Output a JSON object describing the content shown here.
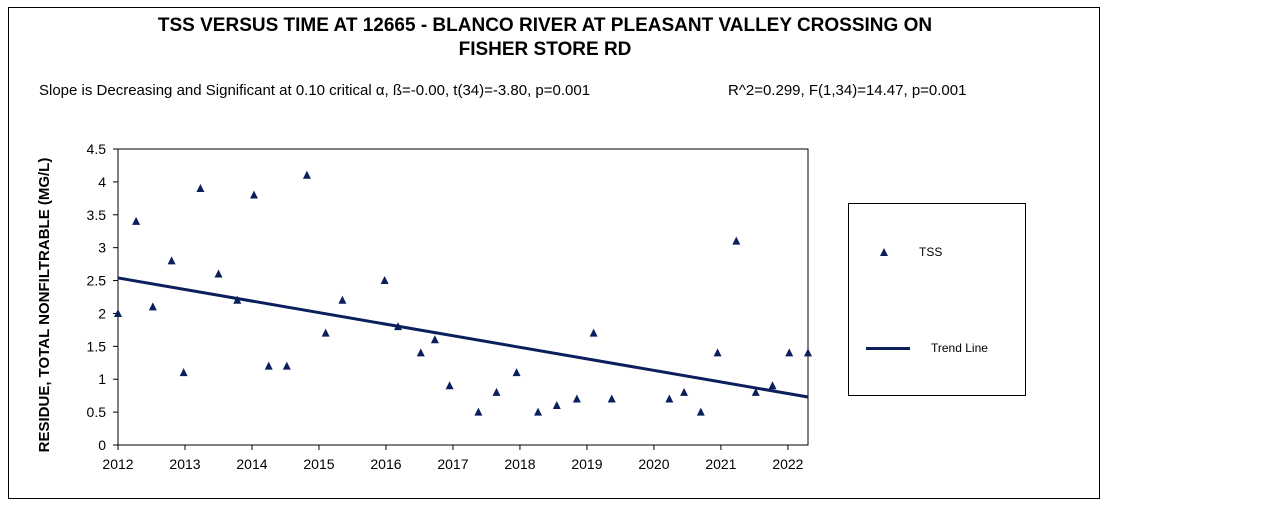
{
  "chart_data": {
    "type": "scatter",
    "title": "TSS VERSUS  TIME AT 12665 - BLANCO RIVER AT PLEASANT VALLEY CROSSING  ON\nFISHER STORE RD",
    "subtitle_left": "Slope is Decreasing and Significant at 0.10 critical α, ß=-0.00, t(34)=-3.80, p=0.001",
    "subtitle_right": "R^2=0.299,  F(1,34)=14.47, p=0.001",
    "xlabel": "",
    "ylabel": "RESIDUE, TOTAL  NONFILTRABLE  (MG/L)",
    "xlim": [
      2012,
      2022.3
    ],
    "ylim": [
      0,
      4.5
    ],
    "x_ticks": [
      "2012",
      "2013",
      "2014",
      "2015",
      "2016",
      "2017",
      "2018",
      "2019",
      "2020",
      "2021",
      "2022"
    ],
    "y_ticks": [
      "0",
      "0.5",
      "1",
      "1.5",
      "2",
      "2.5",
      "3",
      "3.5",
      "4",
      "4.5"
    ],
    "grid": false,
    "legend_position": "right",
    "series": [
      {
        "name": "TSS",
        "marker": "triangle",
        "color": "#0b1f5c",
        "points": [
          [
            2012.0,
            2.0
          ],
          [
            2012.27,
            3.4
          ],
          [
            2012.52,
            2.1
          ],
          [
            2012.8,
            2.8
          ],
          [
            2012.98,
            1.1
          ],
          [
            2013.23,
            3.9
          ],
          [
            2013.5,
            2.6
          ],
          [
            2013.78,
            2.2
          ],
          [
            2014.03,
            3.8
          ],
          [
            2014.25,
            1.2
          ],
          [
            2014.52,
            1.2
          ],
          [
            2014.82,
            4.1
          ],
          [
            2015.1,
            1.7
          ],
          [
            2015.35,
            2.2
          ],
          [
            2015.98,
            2.5
          ],
          [
            2016.18,
            1.8
          ],
          [
            2016.52,
            1.4
          ],
          [
            2016.73,
            1.6
          ],
          [
            2016.95,
            0.9
          ],
          [
            2017.38,
            0.5
          ],
          [
            2017.65,
            0.8
          ],
          [
            2017.95,
            1.1
          ],
          [
            2018.27,
            0.5
          ],
          [
            2018.55,
            0.6
          ],
          [
            2018.85,
            0.7
          ],
          [
            2019.1,
            1.7
          ],
          [
            2019.37,
            0.7
          ],
          [
            2020.23,
            0.7
          ],
          [
            2020.45,
            0.8
          ],
          [
            2020.7,
            0.5
          ],
          [
            2020.95,
            1.4
          ],
          [
            2021.23,
            3.1
          ],
          [
            2021.52,
            0.8
          ],
          [
            2021.77,
            0.9
          ],
          [
            2022.02,
            1.4
          ],
          [
            2022.3,
            1.4
          ]
        ]
      },
      {
        "name": "Trend Line",
        "type": "line",
        "color": "#0b1f5c",
        "points": [
          [
            2012.0,
            2.54
          ],
          [
            2022.3,
            0.73
          ]
        ]
      }
    ]
  }
}
